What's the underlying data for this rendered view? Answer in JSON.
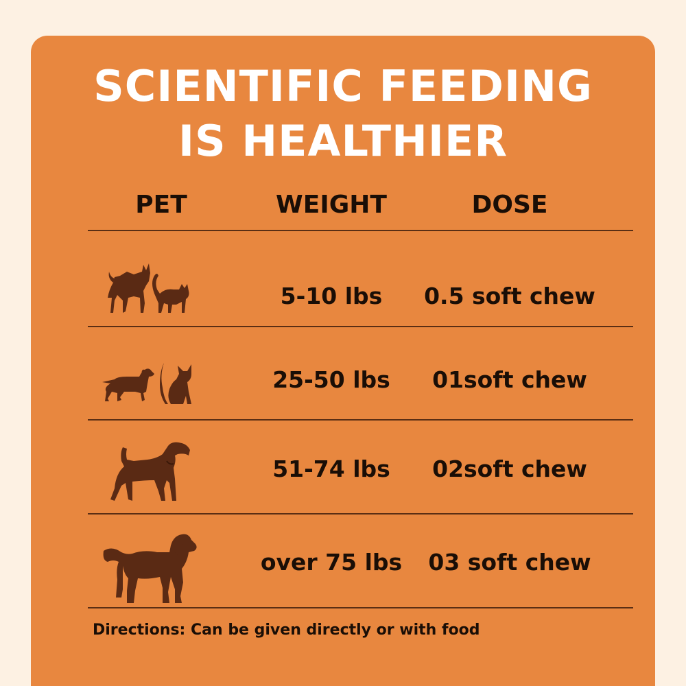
{
  "title": {
    "line1": "SCIENTIFIC FEEDING",
    "line2": "IS HEALTHIER"
  },
  "table": {
    "headers": [
      "PET",
      "WEIGHT",
      "DOSE"
    ],
    "rows": [
      {
        "pet_icon": "small-dog-and-cat-icon",
        "weight": "5-10 lbs",
        "dose": "0.5 soft chew"
      },
      {
        "pet_icon": "dachshund-and-sitting-cat-icon",
        "weight": "25-50 lbs",
        "dose": "01soft chew"
      },
      {
        "pet_icon": "medium-dog-icon",
        "weight": "51-74 lbs",
        "dose": "02soft chew"
      },
      {
        "pet_icon": "large-dog-icon",
        "weight": "over 75 lbs",
        "dose": "03 soft chew"
      }
    ]
  },
  "directions": "Directions: Can be given directly or with food",
  "colors": {
    "background": "#fdf1e3",
    "card": "#e8873f",
    "icon": "#5a2a14",
    "text_dark": "#1a0e06",
    "title": "#ffffff"
  }
}
